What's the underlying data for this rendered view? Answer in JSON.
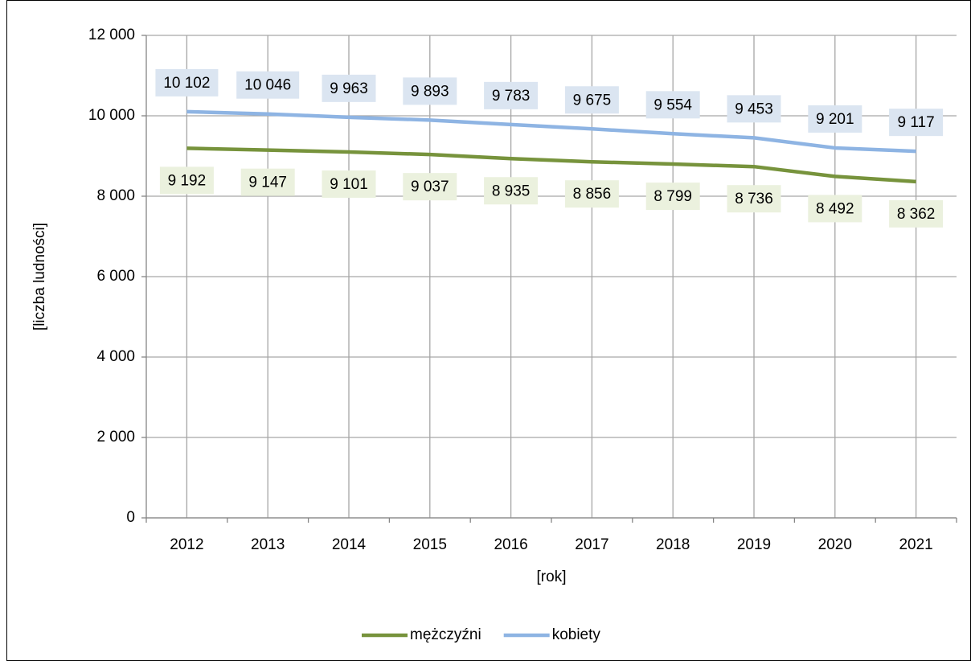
{
  "chart_data": {
    "type": "line",
    "categories": [
      "2012",
      "2013",
      "2014",
      "2015",
      "2016",
      "2017",
      "2018",
      "2019",
      "2020",
      "2021"
    ],
    "series": [
      {
        "name": "mężczyźni",
        "color": "#77933c",
        "label_bg": "#ebf1de",
        "values": [
          9192,
          9147,
          9101,
          9037,
          8935,
          8856,
          8799,
          8736,
          8492,
          8362
        ],
        "value_labels": [
          "9 192",
          "9 147",
          "9 101",
          "9 037",
          "8 935",
          "8 856",
          "8 799",
          "8 736",
          "8 492",
          "8 362"
        ]
      },
      {
        "name": "kobiety",
        "color": "#8eb4e3",
        "label_bg": "#dbe5f1",
        "values": [
          10102,
          10046,
          9963,
          9893,
          9783,
          9675,
          9554,
          9453,
          9201,
          9117
        ],
        "value_labels": [
          "10 102",
          "10 046",
          "9 963",
          "9 893",
          "9 783",
          "9 675",
          "9 554",
          "9 453",
          "9 201",
          "9 117"
        ]
      }
    ],
    "ylim": [
      0,
      12000
    ],
    "yticks": [
      0,
      {
        "value": 2000,
        "label": "2 000"
      },
      {
        "value": 4000,
        "label": "4 000"
      },
      {
        "value": 6000,
        "label": "6 000"
      },
      {
        "value": 8000,
        "label": "8 000"
      },
      {
        "value": 10000,
        "label": "10 000"
      },
      {
        "value": 12000,
        "label": "12 000"
      }
    ],
    "x_label": "[rok]",
    "y_label": "[liczba ludności]",
    "grid": true,
    "legend": "bottom"
  }
}
